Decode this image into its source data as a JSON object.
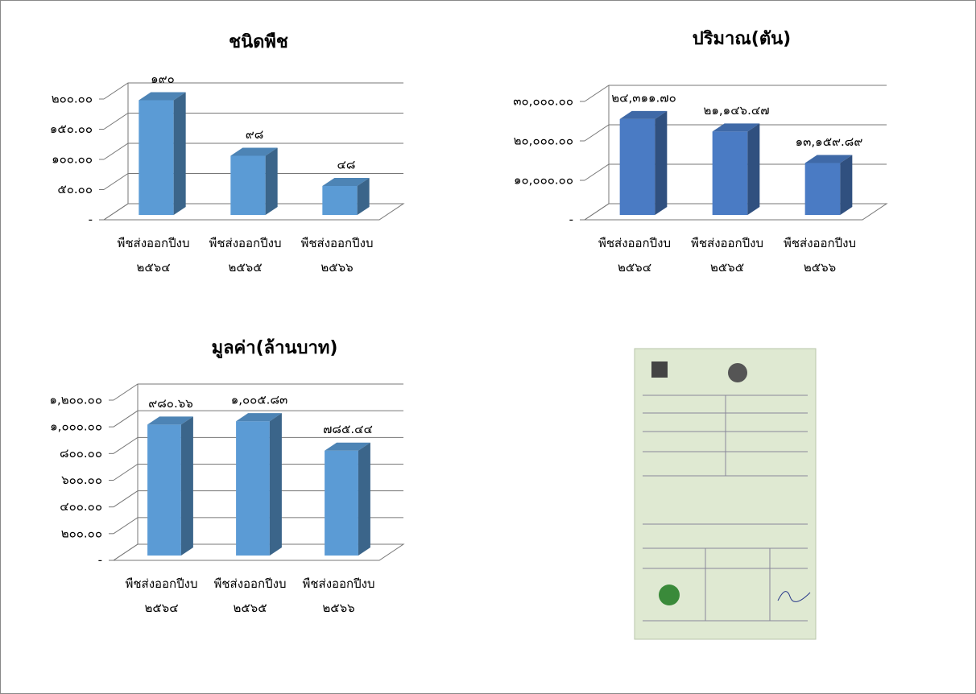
{
  "chart_data": [
    {
      "type": "bar3d",
      "title": "ชนิดพืช",
      "categories": [
        "พืชส่งออกปีงบ ๒๕๖๔",
        "พืชส่งออกปีงบ ๒๕๖๕",
        "พืชส่งออกปีงบ ๒๕๖๖"
      ],
      "values": [
        190,
        98,
        48
      ],
      "value_labels": [
        "๑๙๐",
        "๙๘",
        "๔๘"
      ],
      "color": "#5b9bd5",
      "ylim": [
        0,
        200
      ],
      "yticks": [
        {
          "value": 0,
          "label": "-"
        },
        {
          "value": 50,
          "label": "๕๐.๐๐"
        },
        {
          "value": 100,
          "label": "๑๐๐.๐๐"
        },
        {
          "value": 150,
          "label": "๑๕๐.๐๐"
        },
        {
          "value": 200,
          "label": "๒๐๐.๐๐"
        }
      ],
      "grid": true
    },
    {
      "type": "bar3d",
      "title": "ปริมาณ(ตัน)",
      "categories": [
        "พืชส่งออกปีงบ ๒๕๖๔",
        "พืชส่งออกปีงบ ๒๕๖๕",
        "พืชส่งออกปีงบ ๒๕๖๖"
      ],
      "values": [
        24311.7,
        21146.47,
        13159.89
      ],
      "value_labels": [
        "๒๔,๓๑๑.๗๐",
        "๒๑,๑๔๖.๔๗",
        "๑๓,๑๕๙.๘๙"
      ],
      "color": "#4a7bc4",
      "ylim": [
        0,
        30000
      ],
      "yticks": [
        {
          "value": 0,
          "label": "-"
        },
        {
          "value": 10000,
          "label": "๑๐,๐๐๐.๐๐"
        },
        {
          "value": 20000,
          "label": "๒๐,๐๐๐.๐๐"
        },
        {
          "value": 30000,
          "label": "๓๐,๐๐๐.๐๐"
        }
      ],
      "grid": true
    },
    {
      "type": "bar3d",
      "title": "มูลค่า(ล้านบาท)",
      "categories": [
        "พืชส่งออกปีงบ ๒๕๖๔",
        "พืชส่งออกปีงบ ๒๕๖๕",
        "พืชส่งออกปีงบ ๒๕๖๖"
      ],
      "values": [
        980.66,
        1005.83,
        785.44
      ],
      "value_labels": [
        "๙๘๐.๖๖",
        "๑,๐๐๕.๘๓",
        "๗๘๕.๔๔"
      ],
      "color": "#5b9bd5",
      "ylim": [
        0,
        1200
      ],
      "yticks": [
        {
          "value": 0,
          "label": "-"
        },
        {
          "value": 200,
          "label": "๒๐๐.๐๐"
        },
        {
          "value": 400,
          "label": "๔๐๐.๐๐"
        },
        {
          "value": 600,
          "label": "๖๐๐.๐๐"
        },
        {
          "value": 800,
          "label": "๘๐๐.๐๐"
        },
        {
          "value": 1000,
          "label": "๑,๐๐๐.๐๐"
        },
        {
          "value": 1200,
          "label": "๑,๒๐๐.๐๐"
        }
      ],
      "grid": true
    }
  ]
}
